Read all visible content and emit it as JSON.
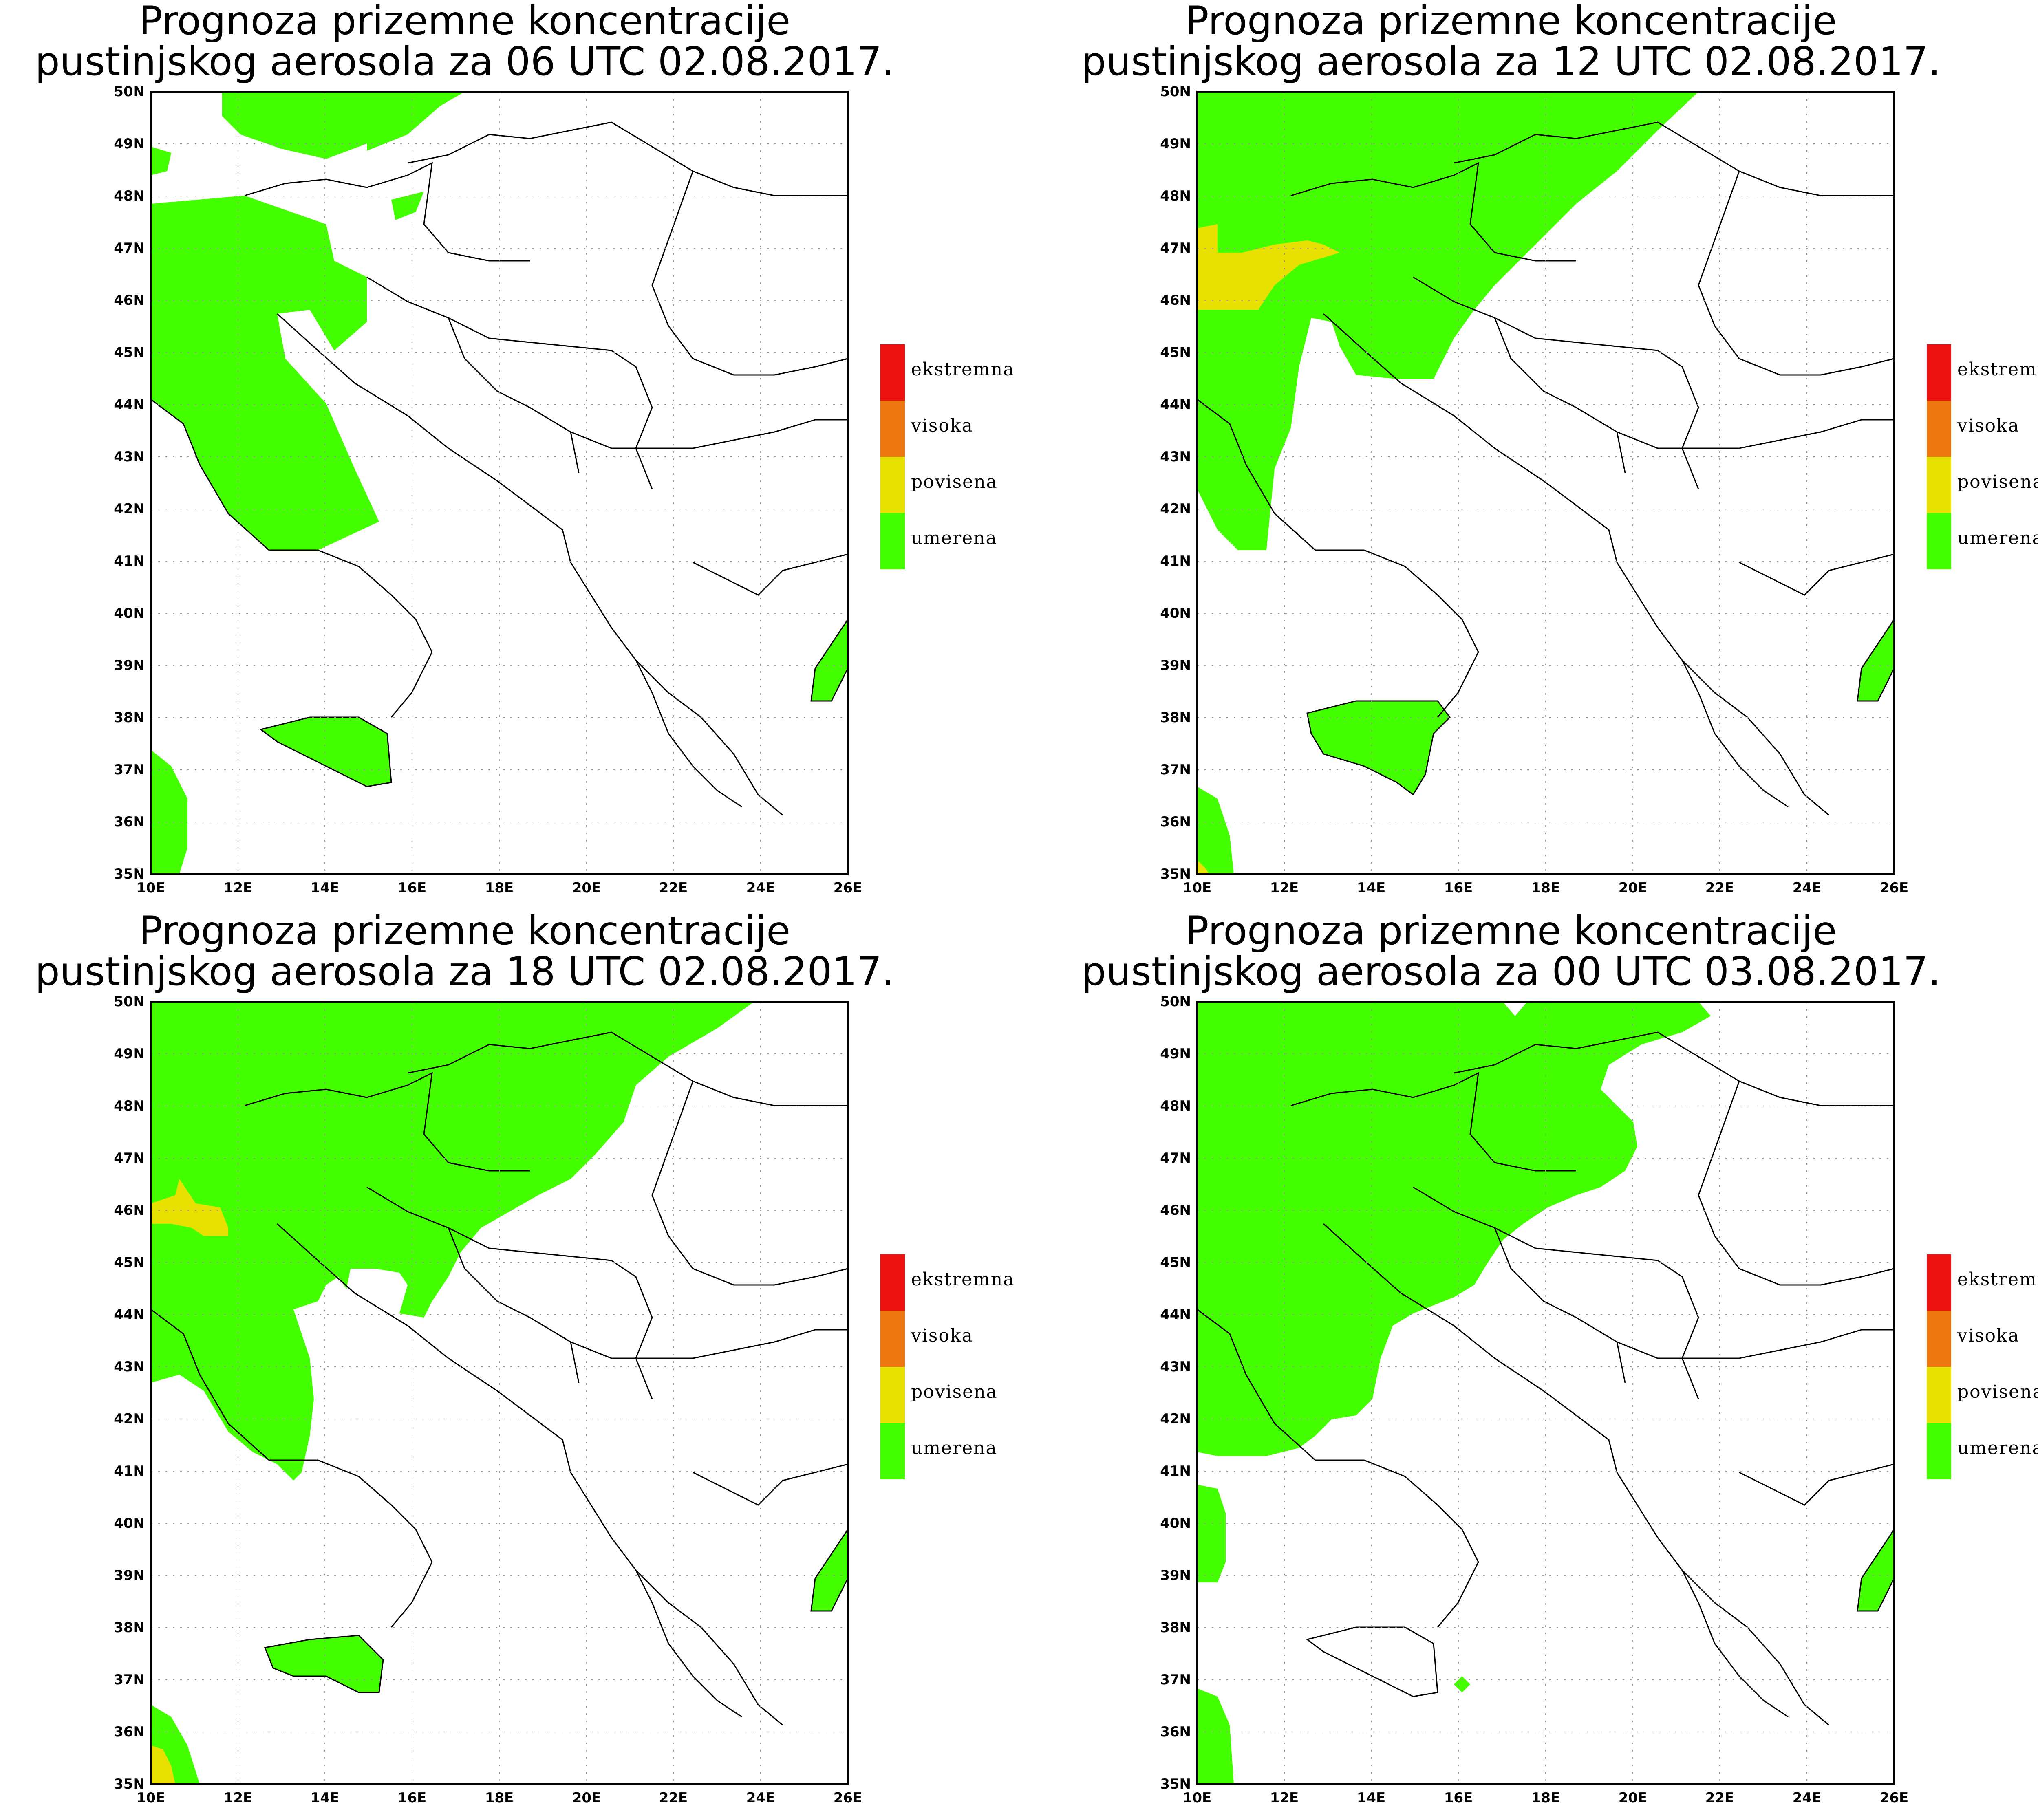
{
  "legend": {
    "colors": {
      "ekstremna": "#ee1111",
      "visoka": "#ee7711",
      "povisena": "#e8e000",
      "umerena": "#44ff00"
    },
    "items": [
      {
        "key": "ekstremna",
        "label": "ekstremna"
      },
      {
        "key": "visoka",
        "label": "visoka"
      },
      {
        "key": "povisena",
        "label": "povisena"
      },
      {
        "key": "umerena",
        "label": "umerena"
      }
    ]
  },
  "axes": {
    "lat_labels": [
      "50N",
      "49N",
      "48N",
      "47N",
      "46N",
      "45N",
      "44N",
      "43N",
      "42N",
      "41N",
      "40N",
      "39N",
      "38N",
      "37N",
      "36N",
      "35N"
    ],
    "lon_labels": [
      "10E",
      "12E",
      "14E",
      "16E",
      "18E",
      "20E",
      "22E",
      "24E",
      "26E"
    ]
  },
  "panels": [
    {
      "title_line1": "Prognoza prizemne koncentracije",
      "title_line2": "pustinjskog aerosola za 06 UTC 02.08.2017."
    },
    {
      "title_line1": "Prognoza prizemne koncentracije",
      "title_line2": "pustinjskog aerosola za 12 UTC 02.08.2017."
    },
    {
      "title_line1": "Prognoza prizemne koncentracije",
      "title_line2": "pustinjskog aerosola za 18 UTC 02.08.2017."
    },
    {
      "title_line1": "Prognoza prizemne koncentracije",
      "title_line2": "pustinjskog aerosola za 00 UTC 03.08.2017."
    }
  ]
}
